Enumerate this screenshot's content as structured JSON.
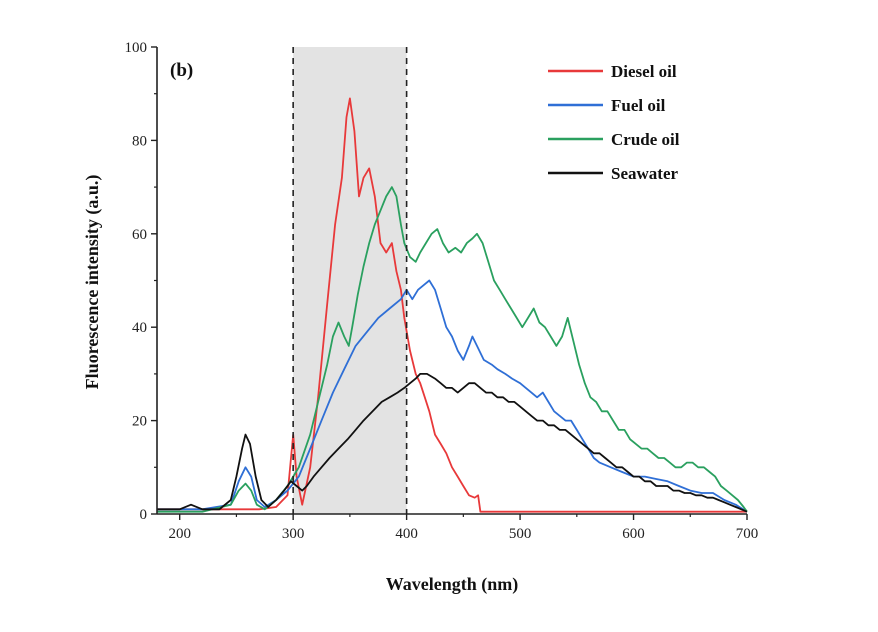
{
  "chart_data": {
    "type": "line",
    "panel_label": "(b)",
    "xlabel": "Wavelength (nm)",
    "ylabel": "Fluorescence intensity (a.u.)",
    "xlim": [
      180,
      700
    ],
    "ylim": [
      0,
      100
    ],
    "x_ticks": [
      200,
      300,
      400,
      500,
      600,
      700
    ],
    "y_ticks": [
      0,
      20,
      40,
      60,
      80,
      100
    ],
    "highlight_region": [
      300,
      400
    ],
    "highlight_color": "#e3e3e3",
    "legend_position": "top-right",
    "series": [
      {
        "name": "Diesel oil",
        "color": "#e8393a",
        "points": [
          [
            180,
            1
          ],
          [
            220,
            1
          ],
          [
            250,
            1
          ],
          [
            270,
            1
          ],
          [
            285,
            1.5
          ],
          [
            295,
            4
          ],
          [
            300,
            17
          ],
          [
            303,
            8
          ],
          [
            308,
            2
          ],
          [
            315,
            10
          ],
          [
            322,
            25
          ],
          [
            330,
            45
          ],
          [
            337,
            62
          ],
          [
            343,
            72
          ],
          [
            347,
            85
          ],
          [
            350,
            89
          ],
          [
            354,
            82
          ],
          [
            358,
            68
          ],
          [
            362,
            72
          ],
          [
            367,
            74
          ],
          [
            372,
            68
          ],
          [
            377,
            58
          ],
          [
            382,
            56
          ],
          [
            387,
            58
          ],
          [
            391,
            52
          ],
          [
            395,
            48
          ],
          [
            398,
            42
          ],
          [
            403,
            35
          ],
          [
            408,
            30
          ],
          [
            412,
            28
          ],
          [
            416,
            25
          ],
          [
            420,
            22
          ],
          [
            425,
            17
          ],
          [
            430,
            15
          ],
          [
            435,
            13
          ],
          [
            440,
            10
          ],
          [
            445,
            8
          ],
          [
            450,
            6
          ],
          [
            455,
            4
          ],
          [
            460,
            3.5
          ],
          [
            463,
            4
          ],
          [
            465,
            0.5
          ],
          [
            500,
            0.5
          ],
          [
            560,
            0.5
          ],
          [
            620,
            0.5
          ],
          [
            680,
            0.5
          ],
          [
            700,
            0.5
          ]
        ]
      },
      {
        "name": "Fuel oil",
        "color": "#2f6fd6",
        "points": [
          [
            180,
            1
          ],
          [
            220,
            1
          ],
          [
            245,
            2
          ],
          [
            252,
            7
          ],
          [
            258,
            10
          ],
          [
            263,
            8
          ],
          [
            268,
            3
          ],
          [
            275,
            1.5
          ],
          [
            285,
            3
          ],
          [
            295,
            5
          ],
          [
            305,
            8
          ],
          [
            315,
            14
          ],
          [
            325,
            20
          ],
          [
            335,
            26
          ],
          [
            345,
            31
          ],
          [
            355,
            36
          ],
          [
            365,
            39
          ],
          [
            375,
            42
          ],
          [
            385,
            44
          ],
          [
            395,
            46
          ],
          [
            400,
            48
          ],
          [
            405,
            46
          ],
          [
            410,
            48
          ],
          [
            415,
            49
          ],
          [
            420,
            50
          ],
          [
            425,
            48
          ],
          [
            430,
            44
          ],
          [
            435,
            40
          ],
          [
            440,
            38
          ],
          [
            445,
            35
          ],
          [
            450,
            33
          ],
          [
            455,
            36
          ],
          [
            458,
            38
          ],
          [
            462,
            36
          ],
          [
            468,
            33
          ],
          [
            475,
            32
          ],
          [
            480,
            31
          ],
          [
            487,
            30
          ],
          [
            493,
            29
          ],
          [
            500,
            28
          ],
          [
            505,
            27
          ],
          [
            510,
            26
          ],
          [
            515,
            25
          ],
          [
            520,
            26
          ],
          [
            525,
            24
          ],
          [
            530,
            22
          ],
          [
            535,
            21
          ],
          [
            540,
            20
          ],
          [
            545,
            20
          ],
          [
            550,
            18
          ],
          [
            555,
            16
          ],
          [
            560,
            14
          ],
          [
            565,
            12
          ],
          [
            570,
            11
          ],
          [
            580,
            10
          ],
          [
            590,
            9
          ],
          [
            600,
            8
          ],
          [
            610,
            8
          ],
          [
            620,
            7.5
          ],
          [
            630,
            7
          ],
          [
            640,
            6
          ],
          [
            650,
            5
          ],
          [
            660,
            4.5
          ],
          [
            670,
            4.5
          ],
          [
            680,
            3
          ],
          [
            690,
            2
          ],
          [
            700,
            0.5
          ]
        ]
      },
      {
        "name": "Crude oil",
        "color": "#2aa05f",
        "points": [
          [
            180,
            0.5
          ],
          [
            220,
            0.5
          ],
          [
            245,
            2
          ],
          [
            252,
            5
          ],
          [
            258,
            6.5
          ],
          [
            263,
            5
          ],
          [
            268,
            2
          ],
          [
            275,
            1
          ],
          [
            285,
            3
          ],
          [
            295,
            6
          ],
          [
            305,
            10
          ],
          [
            315,
            17
          ],
          [
            322,
            24
          ],
          [
            330,
            32
          ],
          [
            335,
            38
          ],
          [
            340,
            41
          ],
          [
            345,
            38
          ],
          [
            349,
            36
          ],
          [
            352,
            40
          ],
          [
            357,
            47
          ],
          [
            362,
            53
          ],
          [
            367,
            58
          ],
          [
            372,
            62
          ],
          [
            377,
            65
          ],
          [
            382,
            68
          ],
          [
            387,
            70
          ],
          [
            391,
            68
          ],
          [
            395,
            62
          ],
          [
            398,
            58
          ],
          [
            403,
            55
          ],
          [
            408,
            54
          ],
          [
            412,
            56
          ],
          [
            417,
            58
          ],
          [
            422,
            60
          ],
          [
            427,
            61
          ],
          [
            432,
            58
          ],
          [
            437,
            56
          ],
          [
            443,
            57
          ],
          [
            448,
            56
          ],
          [
            453,
            58
          ],
          [
            458,
            59
          ],
          [
            462,
            60
          ],
          [
            467,
            58
          ],
          [
            472,
            54
          ],
          [
            477,
            50
          ],
          [
            482,
            48
          ],
          [
            487,
            46
          ],
          [
            492,
            44
          ],
          [
            497,
            42
          ],
          [
            502,
            40
          ],
          [
            507,
            42
          ],
          [
            512,
            44
          ],
          [
            517,
            41
          ],
          [
            522,
            40
          ],
          [
            527,
            38
          ],
          [
            532,
            36
          ],
          [
            537,
            38
          ],
          [
            542,
            42
          ],
          [
            547,
            37
          ],
          [
            552,
            32
          ],
          [
            557,
            28
          ],
          [
            562,
            25
          ],
          [
            567,
            24
          ],
          [
            572,
            22
          ],
          [
            577,
            22
          ],
          [
            582,
            20
          ],
          [
            587,
            18
          ],
          [
            592,
            18
          ],
          [
            597,
            16
          ],
          [
            602,
            15
          ],
          [
            607,
            14
          ],
          [
            612,
            14
          ],
          [
            617,
            13
          ],
          [
            622,
            12
          ],
          [
            627,
            12
          ],
          [
            632,
            11
          ],
          [
            637,
            10
          ],
          [
            642,
            10
          ],
          [
            647,
            11
          ],
          [
            652,
            11
          ],
          [
            657,
            10
          ],
          [
            662,
            10
          ],
          [
            667,
            9
          ],
          [
            672,
            8
          ],
          [
            677,
            6
          ],
          [
            682,
            5
          ],
          [
            687,
            4
          ],
          [
            692,
            3
          ],
          [
            697,
            1.5
          ],
          [
            700,
            0.5
          ]
        ]
      },
      {
        "name": "Seawater",
        "color": "#111111",
        "points": [
          [
            180,
            1
          ],
          [
            200,
            1
          ],
          [
            210,
            2
          ],
          [
            220,
            1
          ],
          [
            235,
            1
          ],
          [
            245,
            3
          ],
          [
            250,
            8
          ],
          [
            255,
            14
          ],
          [
            258,
            17
          ],
          [
            262,
            15
          ],
          [
            267,
            8
          ],
          [
            272,
            3
          ],
          [
            278,
            1.5
          ],
          [
            285,
            3
          ],
          [
            292,
            5
          ],
          [
            298,
            7
          ],
          [
            303,
            6
          ],
          [
            308,
            5
          ],
          [
            312,
            6
          ],
          [
            318,
            8
          ],
          [
            325,
            10
          ],
          [
            332,
            12
          ],
          [
            340,
            14
          ],
          [
            348,
            16
          ],
          [
            355,
            18
          ],
          [
            362,
            20
          ],
          [
            370,
            22
          ],
          [
            378,
            24
          ],
          [
            385,
            25
          ],
          [
            392,
            26
          ],
          [
            398,
            27
          ],
          [
            403,
            28
          ],
          [
            408,
            29
          ],
          [
            412,
            30
          ],
          [
            418,
            30
          ],
          [
            425,
            29
          ],
          [
            430,
            28
          ],
          [
            435,
            27
          ],
          [
            440,
            27
          ],
          [
            445,
            26
          ],
          [
            450,
            27
          ],
          [
            455,
            28
          ],
          [
            460,
            28
          ],
          [
            465,
            27
          ],
          [
            470,
            26
          ],
          [
            475,
            26
          ],
          [
            480,
            25
          ],
          [
            485,
            25
          ],
          [
            490,
            24
          ],
          [
            495,
            24
          ],
          [
            500,
            23
          ],
          [
            505,
            22
          ],
          [
            510,
            21
          ],
          [
            515,
            20
          ],
          [
            520,
            20
          ],
          [
            525,
            19
          ],
          [
            530,
            19
          ],
          [
            535,
            18
          ],
          [
            540,
            18
          ],
          [
            545,
            17
          ],
          [
            550,
            16
          ],
          [
            555,
            15
          ],
          [
            560,
            14
          ],
          [
            565,
            13
          ],
          [
            570,
            13
          ],
          [
            575,
            12
          ],
          [
            580,
            11
          ],
          [
            585,
            10
          ],
          [
            590,
            10
          ],
          [
            595,
            9
          ],
          [
            600,
            8
          ],
          [
            605,
            8
          ],
          [
            610,
            7
          ],
          [
            615,
            7
          ],
          [
            620,
            6
          ],
          [
            625,
            6
          ],
          [
            630,
            6
          ],
          [
            635,
            5
          ],
          [
            640,
            5
          ],
          [
            645,
            4.5
          ],
          [
            650,
            4.5
          ],
          [
            655,
            4
          ],
          [
            660,
            4
          ],
          [
            665,
            3.5
          ],
          [
            670,
            3.5
          ],
          [
            675,
            3
          ],
          [
            680,
            2.5
          ],
          [
            685,
            2
          ],
          [
            690,
            1.5
          ],
          [
            695,
            1
          ],
          [
            700,
            0.5
          ]
        ]
      }
    ]
  }
}
